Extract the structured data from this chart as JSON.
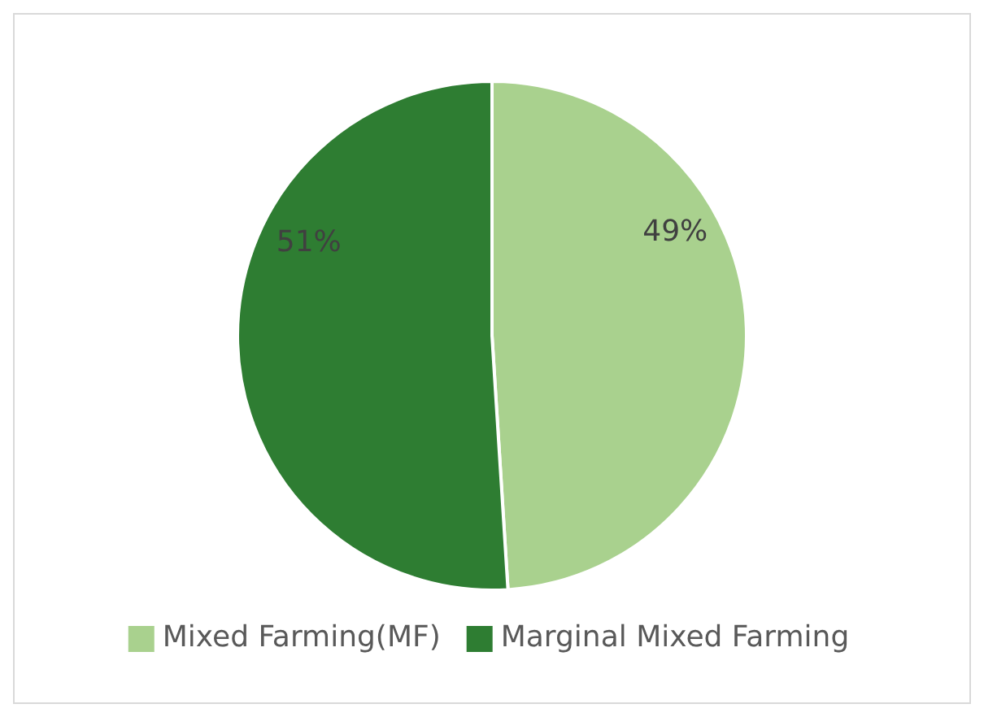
{
  "chart_data": {
    "type": "pie",
    "categories": [
      "Mixed Farming(MF)",
      "Marginal Mixed Farming"
    ],
    "values": [
      49,
      51
    ],
    "colors": [
      "#a9d18e",
      "#2e7d32"
    ],
    "value_labels": [
      "49%",
      "51%"
    ],
    "legend": "bottom"
  }
}
